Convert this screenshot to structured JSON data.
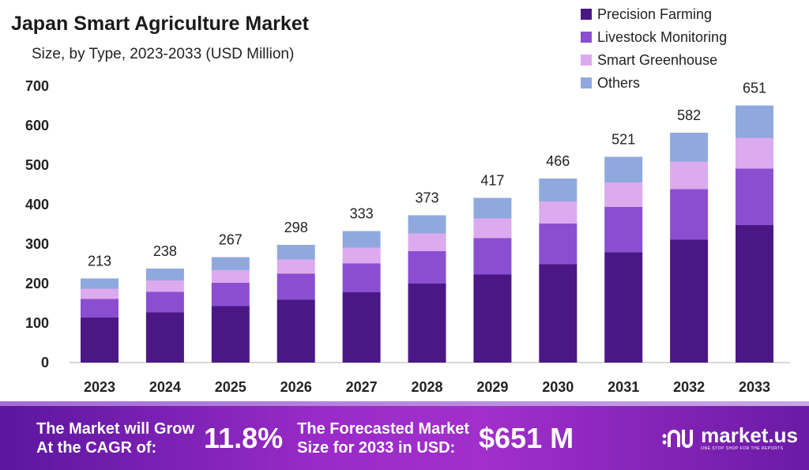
{
  "chart_data": {
    "type": "bar",
    "stacked": true,
    "title": "Japan Smart Agriculture Market",
    "subtitle": "Size, by Type, 2023-2033 (USD Million)",
    "xlabel": "",
    "ylabel": "",
    "ylim": [
      0,
      700
    ],
    "yticks": [
      "0",
      "100",
      "200",
      "300",
      "400",
      "500",
      "600",
      "700"
    ],
    "categories": [
      "2023",
      "2024",
      "2025",
      "2026",
      "2027",
      "2028",
      "2029",
      "2030",
      "2031",
      "2032",
      "2033"
    ],
    "totals": [
      "213",
      "238",
      "267",
      "298",
      "333",
      "373",
      "417",
      "466",
      "521",
      "582",
      "651"
    ],
    "legend_position": "top-right",
    "series": [
      {
        "name": "Precision Farming",
        "color": "#4b1785",
        "values": [
          114,
          127,
          143,
          159,
          178,
          200,
          223,
          249,
          279,
          311,
          348
        ]
      },
      {
        "name": "Livestock Monitoring",
        "color": "#8a4fd0",
        "values": [
          47,
          52,
          59,
          66,
          73,
          82,
          92,
          103,
          115,
          128,
          143
        ]
      },
      {
        "name": "Smart Greenhouse",
        "color": "#dcaaee",
        "values": [
          26,
          29,
          32,
          36,
          40,
          45,
          50,
          56,
          62,
          70,
          78
        ]
      },
      {
        "name": "Others",
        "color": "#8fa9de",
        "values": [
          26,
          30,
          33,
          37,
          42,
          46,
          52,
          58,
          65,
          73,
          82
        ]
      }
    ]
  },
  "banner": {
    "cagr_label_1": "The Market will Grow",
    "cagr_label_2": "At the CAGR of:",
    "cagr_value": "11.8%",
    "forecast_label_1": "The Forecasted Market",
    "forecast_label_2": "Size for 2033 in USD:",
    "forecast_value": "$651 M",
    "brand": "market.us",
    "tagline": "ONE STOP SHOP FOR THE REPORTS"
  }
}
